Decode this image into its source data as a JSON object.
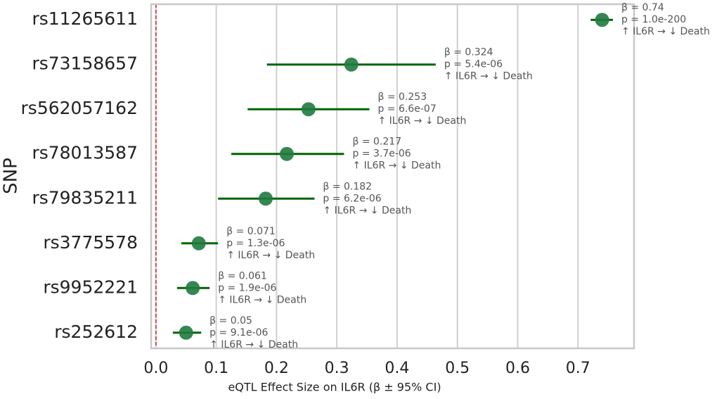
{
  "chart_data": {
    "type": "forest",
    "x_label": "eQTL Effect Size on IL6R (β ± 95% CI)",
    "y_label": "SNP",
    "categories": [
      "rs11265611",
      "rs73158657",
      "rs562057162",
      "rs78013587",
      "rs79835211",
      "rs3775578",
      "rs9952221",
      "rs252612"
    ],
    "values": [
      0.74,
      0.324,
      0.253,
      0.217,
      0.182,
      0.071,
      0.061,
      0.05
    ],
    "value_labels": [
      "β = 0.74",
      "β = 0.324",
      "β = 0.253",
      "β = 0.217",
      "β = 0.182",
      "β = 0.071",
      "β = 0.061",
      "β = 0.05"
    ],
    "ci_low": [
      0.721,
      0.184,
      0.152,
      0.125,
      0.103,
      0.042,
      0.035,
      0.028
    ],
    "ci_high": [
      0.758,
      0.464,
      0.354,
      0.312,
      0.263,
      0.103,
      0.089,
      0.075
    ],
    "p_labels": [
      "p = 1.0e-200",
      "p = 5.4e-06",
      "p = 6.6e-07",
      "p = 3.7e-06",
      "p = 6.2e-06",
      "p = 1.3e-06",
      "p = 1.9e-06",
      "p = 9.1e-06"
    ],
    "effect_labels": [
      "↑ IL6R → ↓ Death",
      "↑ IL6R → ↓ Death",
      "↑ IL6R → ↓ Death",
      "↑ IL6R → ↓ Death",
      "↑ IL6R → ↓ Death",
      "↑ IL6R → ↓ Death",
      "↑ IL6R → ↓ Death",
      "↑ IL6R → ↓ Death"
    ],
    "color": "#1f7a3f",
    "ci_color": "#006400",
    "reference_line": 0,
    "reference_color": "#e41a1c",
    "xlim": [
      -0.008,
      0.793
    ],
    "xticks": [
      {
        "value": 0,
        "label": "0.0"
      },
      {
        "value": 0.1,
        "label": "0.1"
      },
      {
        "value": 0.2,
        "label": "0.2"
      },
      {
        "value": 0.3,
        "label": "0.3"
      },
      {
        "value": 0.4,
        "label": "0.4"
      },
      {
        "value": 0.5,
        "label": "0.5"
      },
      {
        "value": 0.6,
        "label": "0.6"
      },
      {
        "value": 0.7,
        "label": "0.7"
      }
    ],
    "grid": true
  }
}
